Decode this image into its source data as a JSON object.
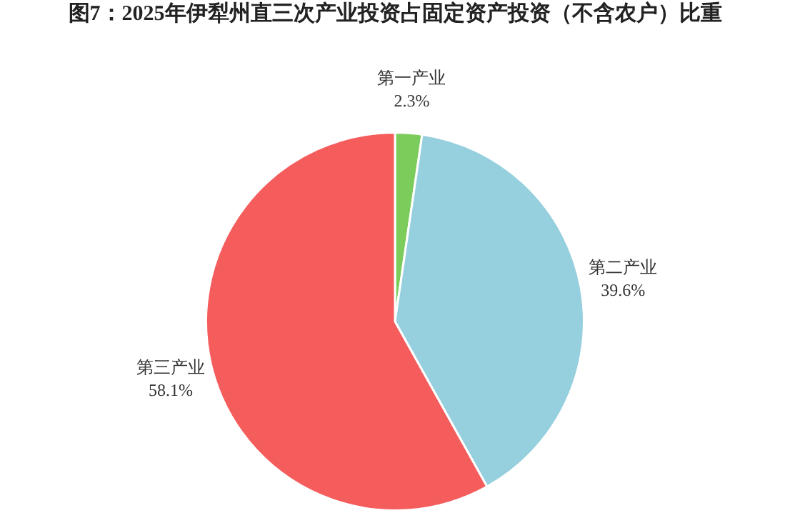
{
  "chart_data": {
    "type": "pie",
    "title": "图7：2025年伊犁州直三次产业投资占固定资产投资（不含农户）比重",
    "categories": [
      "第一产业",
      "第二产业",
      "第三产业"
    ],
    "values": [
      2.3,
      39.6,
      58.1
    ],
    "colors": [
      "#7ccc5c",
      "#96cfdd",
      "#f55d5d"
    ],
    "value_labels": [
      "2.3%",
      "39.6%",
      "58.1%"
    ],
    "legend": false
  }
}
